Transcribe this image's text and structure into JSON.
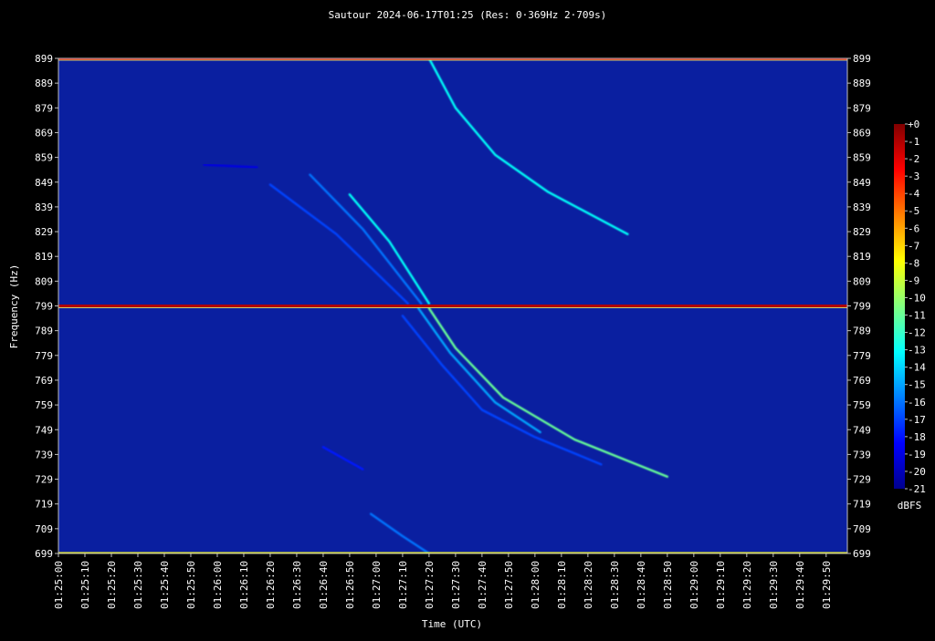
{
  "chart_data": {
    "type": "heatmap",
    "title": "Sautour 2024-06-17T01:25 (Res: 0·369Hz 2·709s)",
    "xlabel": "Time (UTC)",
    "ylabel": "Frequency (Hz)",
    "x_tick_labels": [
      "01:25:00",
      "01:25:10",
      "01:25:20",
      "01:25:30",
      "01:25:40",
      "01:25:50",
      "01:26:00",
      "01:26:10",
      "01:26:20",
      "01:26:30",
      "01:26:40",
      "01:26:50",
      "01:27:00",
      "01:27:10",
      "01:27:20",
      "01:27:30",
      "01:27:40",
      "01:27:50",
      "01:28:00",
      "01:28:10",
      "01:28:20",
      "01:28:30",
      "01:28:40",
      "01:28:50",
      "01:29:00",
      "01:29:10",
      "01:29:20",
      "01:29:30",
      "01:29:40",
      "01:29:50"
    ],
    "y_ticks": [
      899,
      889,
      879,
      869,
      859,
      849,
      839,
      829,
      819,
      809,
      799,
      789,
      779,
      769,
      759,
      749,
      739,
      729,
      719,
      709,
      699
    ],
    "xlim_seconds": [
      0,
      298
    ],
    "ylim": [
      699,
      899
    ],
    "colorbar": {
      "label": "dBFS",
      "ticks": [
        "+0",
        "-1",
        "-2",
        "-3",
        "-4",
        "-5",
        "-6",
        "-7",
        "-8",
        "-9",
        "-10",
        "-11",
        "-12",
        "-13",
        "-14",
        "-15",
        "-16",
        "-17",
        "-18",
        "-19",
        "-20",
        "-21"
      ],
      "range": [
        -21,
        0
      ]
    },
    "colors": {
      "background": "#000000",
      "plot_background": "#0a1fa0",
      "axis": "#bfbfbf"
    },
    "carriers": [
      {
        "freq_hz": 899,
        "dbfs": -2
      },
      {
        "freq_hz": 799,
        "dbfs": -1
      },
      {
        "freq_hz": 699,
        "dbfs": -8
      }
    ],
    "meteor_traces": [
      {
        "dbfs": -13,
        "points": [
          [
            140,
            899
          ],
          [
            150,
            879
          ],
          [
            165,
            860
          ],
          [
            185,
            845
          ],
          [
            215,
            828
          ]
        ]
      },
      {
        "dbfs": -13,
        "points": [
          [
            110,
            844
          ],
          [
            125,
            825
          ],
          [
            140,
            800
          ]
        ]
      },
      {
        "dbfs": -16,
        "points": [
          [
            95,
            852
          ],
          [
            115,
            830
          ],
          [
            137,
            800
          ]
        ]
      },
      {
        "dbfs": -17,
        "points": [
          [
            80,
            848
          ],
          [
            105,
            828
          ],
          [
            132,
            800
          ]
        ]
      },
      {
        "dbfs": -11,
        "points": [
          [
            140,
            798
          ],
          [
            150,
            782
          ],
          [
            168,
            762
          ],
          [
            195,
            745
          ],
          [
            230,
            730
          ]
        ]
      },
      {
        "dbfs": -15,
        "points": [
          [
            136,
            798
          ],
          [
            148,
            780
          ],
          [
            165,
            760
          ],
          [
            182,
            748
          ]
        ]
      },
      {
        "dbfs": -17,
        "points": [
          [
            130,
            795
          ],
          [
            145,
            775
          ],
          [
            160,
            757
          ],
          [
            180,
            746
          ],
          [
            205,
            735
          ]
        ]
      },
      {
        "dbfs": -16,
        "points": [
          [
            118,
            715
          ],
          [
            130,
            706
          ],
          [
            140,
            699
          ]
        ]
      },
      {
        "dbfs": -18,
        "points": [
          [
            100,
            742
          ],
          [
            115,
            733
          ]
        ]
      },
      {
        "dbfs": -19,
        "points": [
          [
            55,
            856
          ],
          [
            75,
            855
          ]
        ]
      }
    ]
  }
}
